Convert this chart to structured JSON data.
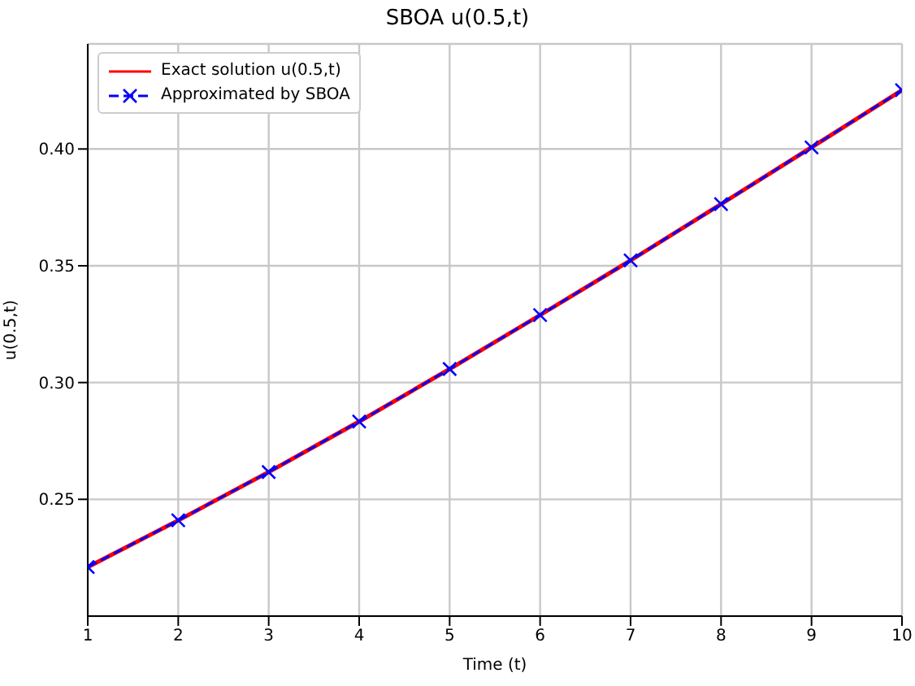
{
  "chart_data": {
    "type": "line",
    "title": "SBOA u(0.5,t)",
    "xlabel": "Time (t)",
    "ylabel": "u(0.5,t)",
    "x": [
      1,
      2,
      3,
      4,
      5,
      6,
      7,
      8,
      9,
      10
    ],
    "series": [
      {
        "name": "Exact solution u(0.5,t)",
        "color": "#ff0000",
        "line_style": "solid",
        "marker": "none",
        "values": [
          0.221,
          0.241,
          0.2617,
          0.2833,
          0.3058,
          0.3289,
          0.3523,
          0.3764,
          0.4007,
          0.4252
        ]
      },
      {
        "name": "Approximated by SBOA",
        "color": "#0000ff",
        "line_style": "dashed",
        "marker": "cross",
        "values": [
          0.221,
          0.241,
          0.2617,
          0.2833,
          0.3058,
          0.3289,
          0.3523,
          0.3764,
          0.4007,
          0.4252
        ]
      }
    ],
    "xlim": [
      1,
      10
    ],
    "xticks": [
      1,
      2,
      3,
      4,
      5,
      6,
      7,
      8,
      9,
      10
    ],
    "ylim": [
      0.2,
      0.445
    ],
    "yticks": [
      0.25,
      {
        "value": 0.3,
        "label": "0.30"
      },
      0.35,
      {
        "value": 0.4,
        "label": "0.40"
      }
    ],
    "grid": true,
    "legend": "top left"
  }
}
